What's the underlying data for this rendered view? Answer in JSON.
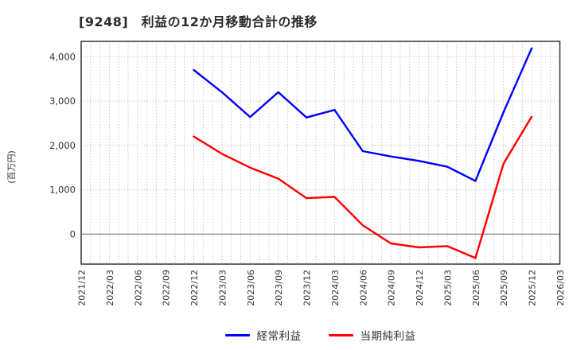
{
  "chart_data": {
    "type": "line",
    "title": "[9248]　利益の12か月移動合計の推移",
    "ylabel": "(百万円)",
    "categories": [
      "2021/12",
      "2022/03",
      "2022/06",
      "2022/09",
      "2022/12",
      "2023/03",
      "2023/06",
      "2023/09",
      "2023/12",
      "2024/03",
      "2024/06",
      "2024/09",
      "2024/12",
      "2025/03",
      "2025/06",
      "2025/09",
      "2025/12",
      "2026/03"
    ],
    "series": [
      {
        "name": "経常利益",
        "color": "#0000ff",
        "values": [
          null,
          null,
          null,
          null,
          3700,
          3200,
          2640,
          3200,
          2630,
          2800,
          1870,
          1750,
          1650,
          1520,
          1200,
          2750,
          4190,
          null
        ]
      },
      {
        "name": "当期純利益",
        "color": "#ff0000",
        "values": [
          null,
          null,
          null,
          null,
          2200,
          1810,
          1500,
          1250,
          810,
          840,
          200,
          -210,
          -300,
          -270,
          -540,
          1590,
          2650,
          null
        ]
      }
    ],
    "yticks": [
      0,
      1000,
      2000,
      3000,
      4000
    ],
    "ylim": [
      -676,
      4346
    ],
    "x_minor_divisions_per_interval": 3,
    "grid": {
      "horizontal": "dotted",
      "vertical": "dotted",
      "zero_line": "solid"
    },
    "legend_position": "bottom-center",
    "colors": {
      "background": "#ffffff",
      "frame": "#262626",
      "grid": "#a8a8a8",
      "zero_line": "#7a7a7a",
      "text": "#333333"
    }
  }
}
